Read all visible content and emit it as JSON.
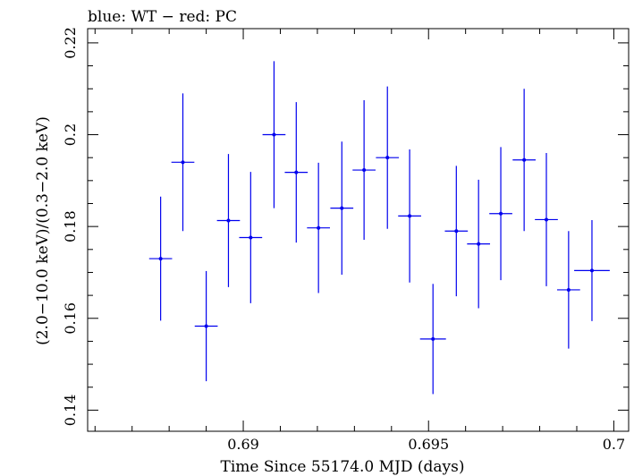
{
  "chart_data": {
    "type": "scatter",
    "title": "blue: WT − red: PC",
    "xlabel": "Time Since 55174.0 MJD (days)",
    "ylabel": "(2.0−10.0 keV)/(0.3−2.0 keV)",
    "xlim": [
      0.6858,
      0.7004
    ],
    "ylim": [
      0.1354,
      0.2231
    ],
    "x_ticks": [
      0.69,
      0.695,
      0.7
    ],
    "x_tick_labels": [
      "0.69",
      "0.695",
      "0.7"
    ],
    "y_ticks": [
      0.14,
      0.16,
      0.18,
      0.2,
      0.22
    ],
    "y_tick_labels": [
      "0.14",
      "0.16",
      "0.18",
      "0.2",
      "0.22"
    ],
    "color": "#0000ee",
    "series": [
      {
        "points": [
          {
            "x": 0.68777,
            "xerr": 0.00031,
            "y": 0.173,
            "yerr": 0.0135
          },
          {
            "x": 0.68837,
            "xerr": 0.00031,
            "y": 0.194,
            "yerr": 0.015
          },
          {
            "x": 0.689,
            "xerr": 0.00031,
            "y": 0.1583,
            "yerr": 0.012
          },
          {
            "x": 0.6896,
            "xerr": 0.00031,
            "y": 0.1813,
            "yerr": 0.0145
          },
          {
            "x": 0.6902,
            "xerr": 0.00031,
            "y": 0.1776,
            "yerr": 0.0143
          },
          {
            "x": 0.69083,
            "xerr": 0.00031,
            "y": 0.2,
            "yerr": 0.016
          },
          {
            "x": 0.69143,
            "xerr": 0.00031,
            "y": 0.1918,
            "yerr": 0.0153
          },
          {
            "x": 0.69203,
            "xerr": 0.00031,
            "y": 0.1797,
            "yerr": 0.0142
          },
          {
            "x": 0.69266,
            "xerr": 0.00031,
            "y": 0.184,
            "yerr": 0.0145
          },
          {
            "x": 0.69326,
            "xerr": 0.00031,
            "y": 0.1923,
            "yerr": 0.0152
          },
          {
            "x": 0.69389,
            "xerr": 0.00031,
            "y": 0.195,
            "yerr": 0.0155
          },
          {
            "x": 0.69449,
            "xerr": 0.00031,
            "y": 0.1823,
            "yerr": 0.0145
          },
          {
            "x": 0.69512,
            "xerr": 0.00035,
            "y": 0.1555,
            "yerr": 0.012
          },
          {
            "x": 0.69575,
            "xerr": 0.00031,
            "y": 0.179,
            "yerr": 0.0142
          },
          {
            "x": 0.69635,
            "xerr": 0.00031,
            "y": 0.1762,
            "yerr": 0.014
          },
          {
            "x": 0.69695,
            "xerr": 0.00031,
            "y": 0.1828,
            "yerr": 0.0145
          },
          {
            "x": 0.69758,
            "xerr": 0.00031,
            "y": 0.1945,
            "yerr": 0.0155
          },
          {
            "x": 0.69818,
            "xerr": 0.00031,
            "y": 0.1815,
            "yerr": 0.0145
          },
          {
            "x": 0.69878,
            "xerr": 0.00031,
            "y": 0.1662,
            "yerr": 0.0128
          },
          {
            "x": 0.69941,
            "xerr": 0.00048,
            "y": 0.1704,
            "yerr": 0.011
          }
        ]
      }
    ]
  }
}
